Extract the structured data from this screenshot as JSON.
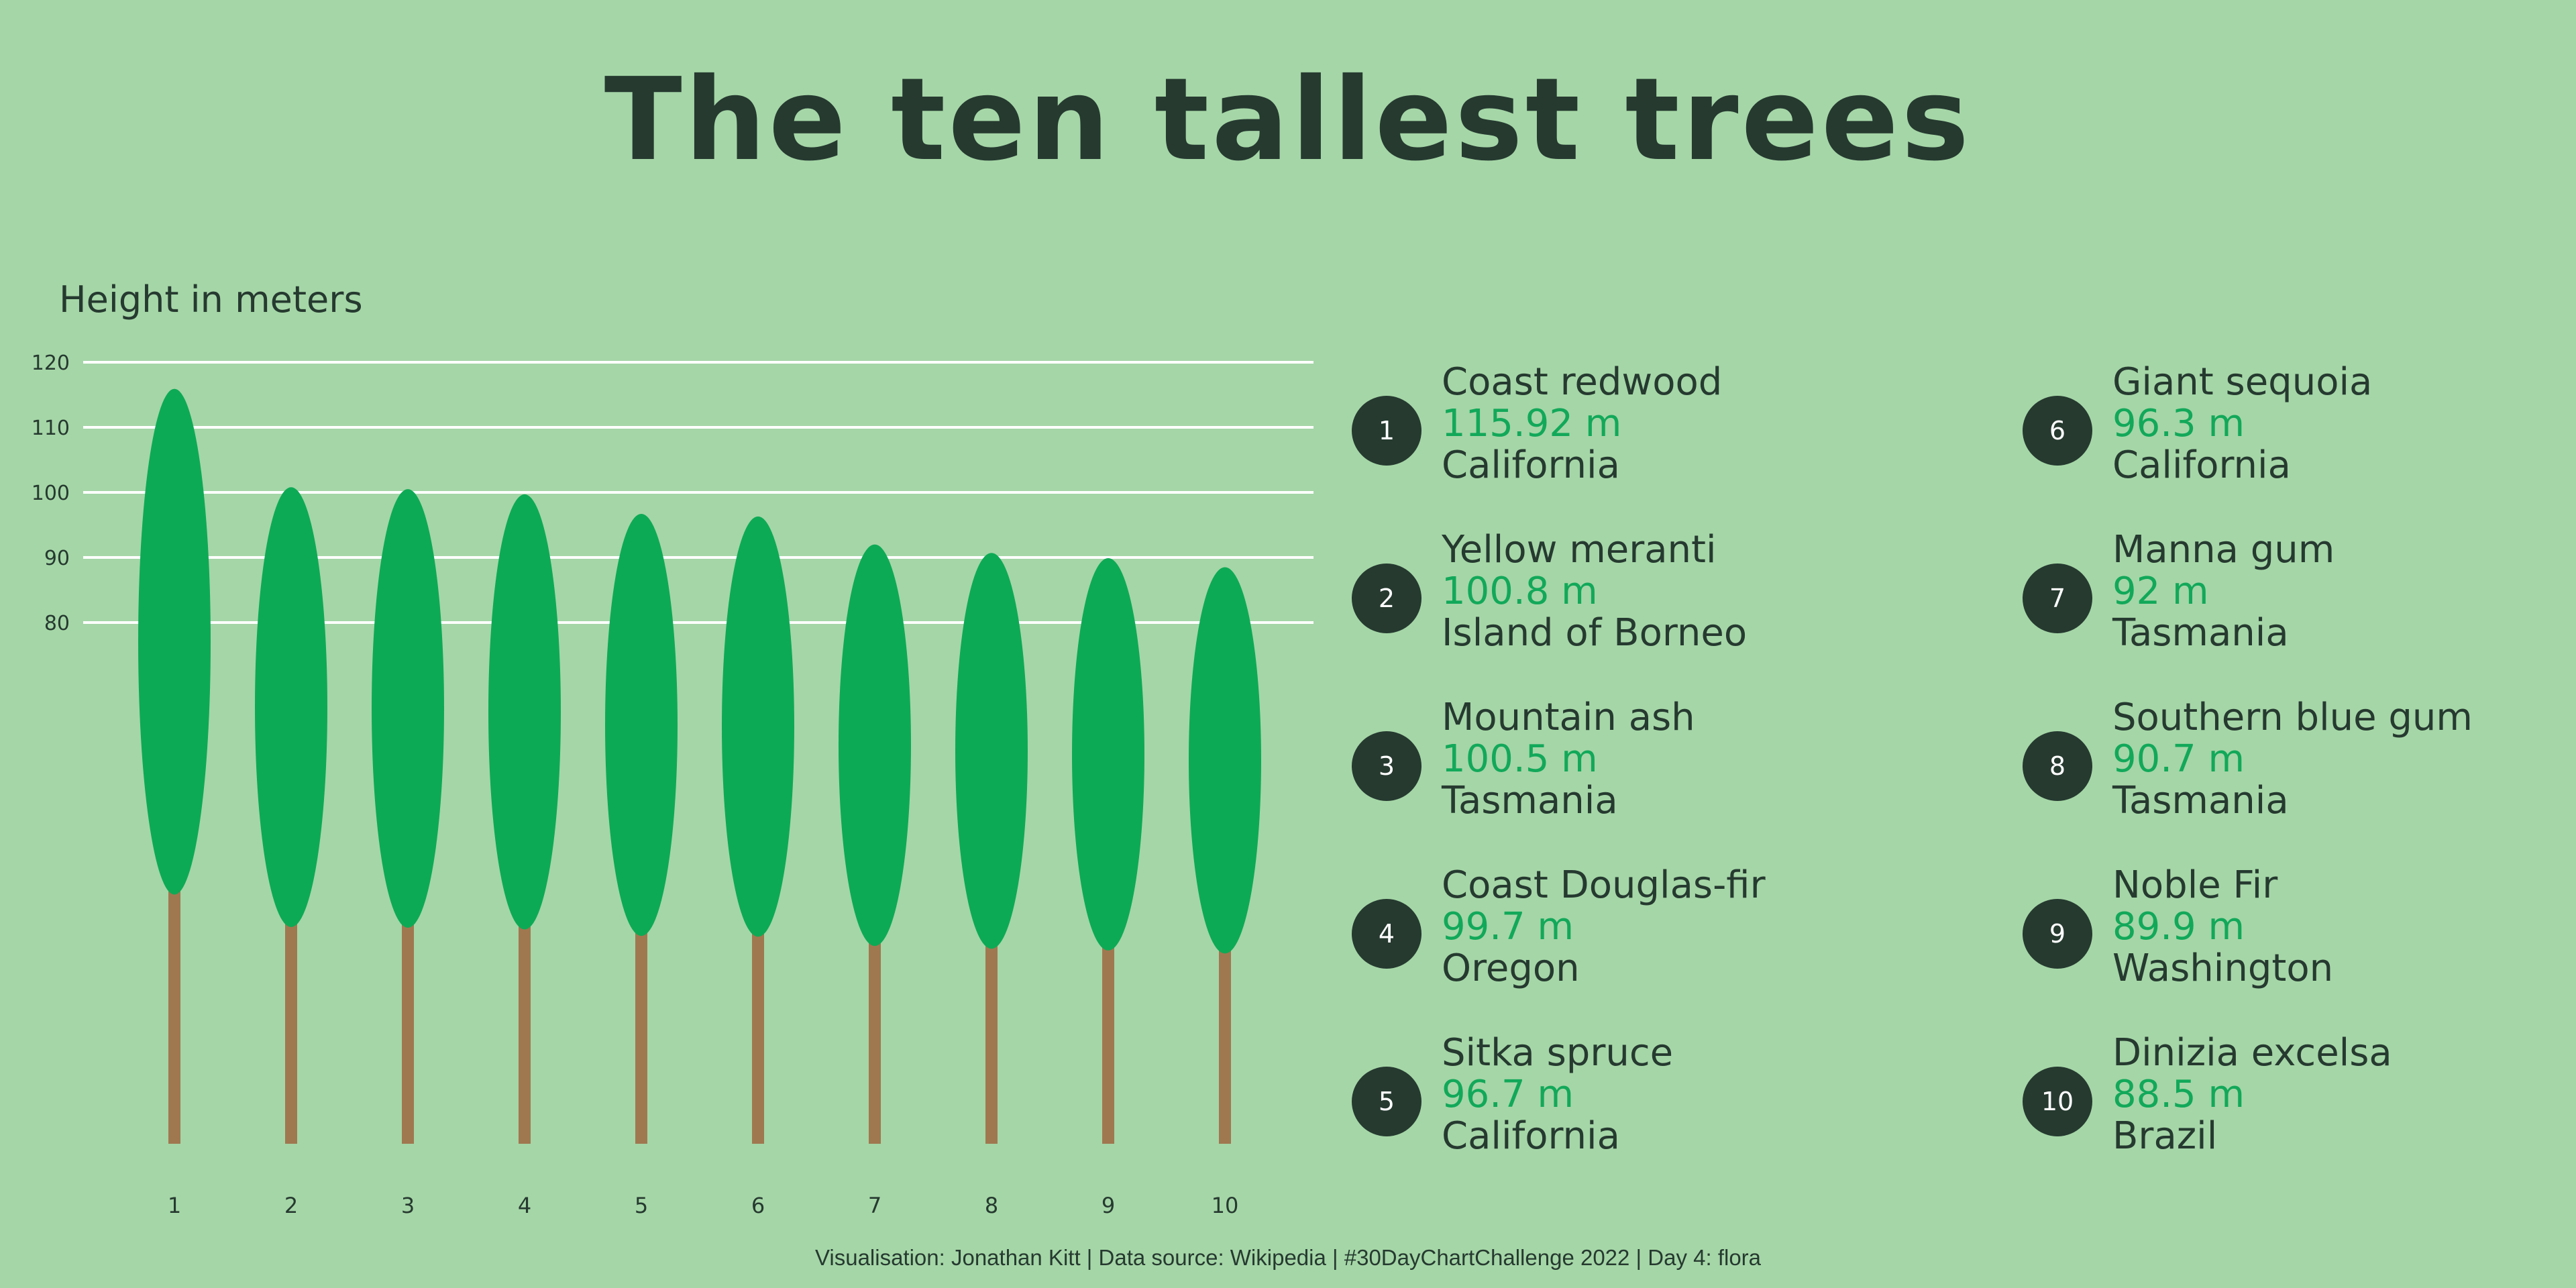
{
  "title": "The ten tallest trees",
  "ylabel": "Height in meters",
  "caption": "Visualisation: Jonathan Kitt | Data source: Wikipedia | #30DayChartChallenge 2022 | Day 4: flora",
  "colors": {
    "background": "#a5d6a7",
    "text": "#263a30",
    "crown": "#0daa55",
    "trunk": "#a07850",
    "gridline": "#ffffff",
    "height_text": "#12a85a",
    "badge": "#263a30"
  },
  "chart_data": {
    "type": "bar",
    "title": "The ten tallest trees",
    "ylabel": "Height in meters",
    "xlabel": "",
    "categories": [
      "1",
      "2",
      "3",
      "4",
      "5",
      "6",
      "7",
      "8",
      "9",
      "10"
    ],
    "values": [
      115.92,
      100.8,
      100.5,
      99.7,
      96.7,
      96.3,
      92,
      90.7,
      89.9,
      88.5
    ],
    "y_ticks": [
      80,
      90,
      100,
      110,
      120
    ],
    "grid": true
  },
  "ranking": [
    {
      "rank": "1",
      "name": "Coast redwood",
      "height": "115.92 m",
      "region": "California"
    },
    {
      "rank": "2",
      "name": "Yellow meranti",
      "height": "100.8 m",
      "region": "Island of Borneo"
    },
    {
      "rank": "3",
      "name": "Mountain ash",
      "height": "100.5 m",
      "region": "Tasmania"
    },
    {
      "rank": "4",
      "name": "Coast Douglas-fir",
      "height": "99.7 m",
      "region": "Oregon"
    },
    {
      "rank": "5",
      "name": "Sitka spruce",
      "height": "96.7 m",
      "region": "California"
    },
    {
      "rank": "6",
      "name": "Giant sequoia",
      "height": "96.3 m",
      "region": "California"
    },
    {
      "rank": "7",
      "name": "Manna gum",
      "height": "92 m",
      "region": "Tasmania"
    },
    {
      "rank": "8",
      "name": "Southern blue gum",
      "height": "90.7 m",
      "region": "Tasmania"
    },
    {
      "rank": "9",
      "name": "Noble Fir",
      "height": "89.9 m",
      "region": "Washington"
    },
    {
      "rank": "10",
      "name": "Dinizia excelsa",
      "height": "88.5 m",
      "region": "Brazil"
    }
  ]
}
